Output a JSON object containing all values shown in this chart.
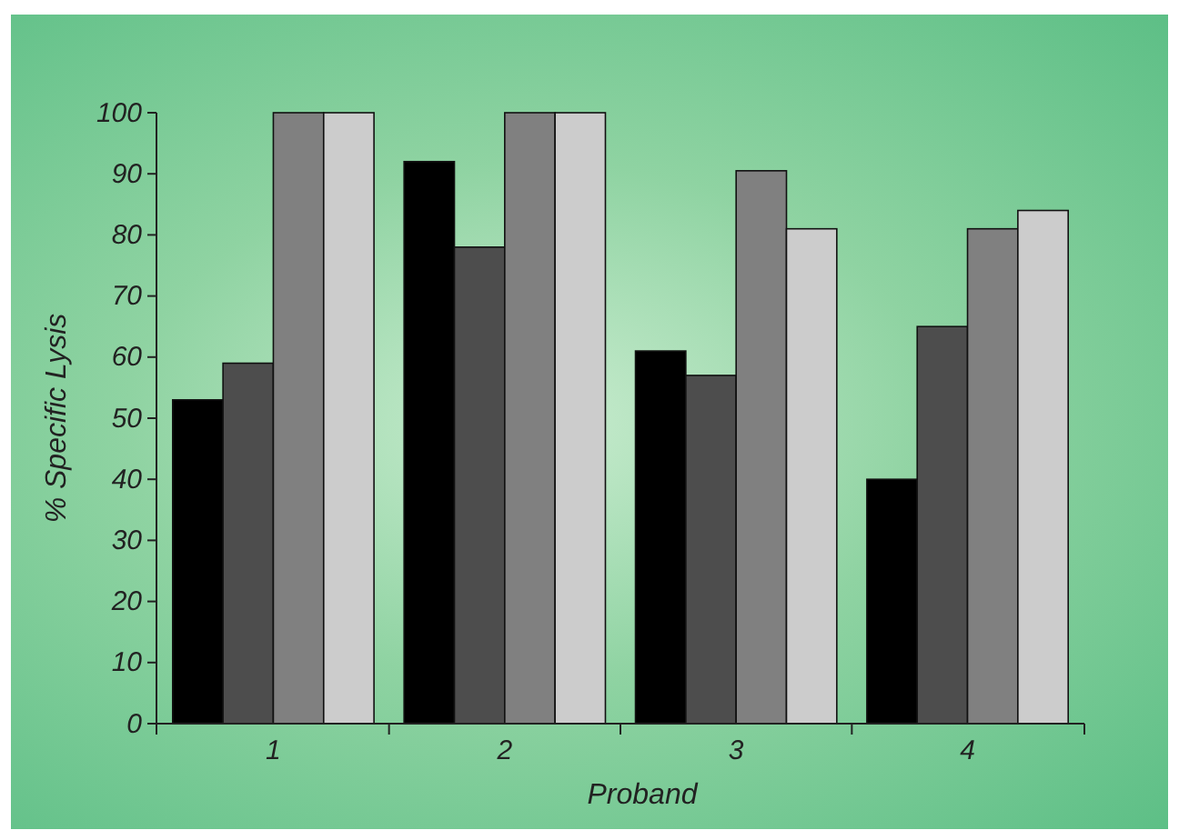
{
  "chart_data": {
    "type": "bar",
    "xlabel": "Proband",
    "ylabel": "% Specific Lysis",
    "categories": [
      "1",
      "2",
      "3",
      "4"
    ],
    "series": [
      {
        "color": "#000000",
        "values": [
          53,
          92,
          61,
          40
        ]
      },
      {
        "color": "#4d4d4d",
        "values": [
          59,
          78,
          57,
          65
        ]
      },
      {
        "color": "#808080",
        "values": [
          100,
          100,
          90.5,
          81
        ]
      },
      {
        "color": "#cccccc",
        "values": [
          100,
          100,
          81,
          84
        ]
      }
    ],
    "ylim": [
      0,
      100
    ],
    "yticks": [
      0,
      10,
      20,
      30,
      40,
      50,
      60,
      70,
      80,
      90,
      100
    ],
    "grid": false
  }
}
